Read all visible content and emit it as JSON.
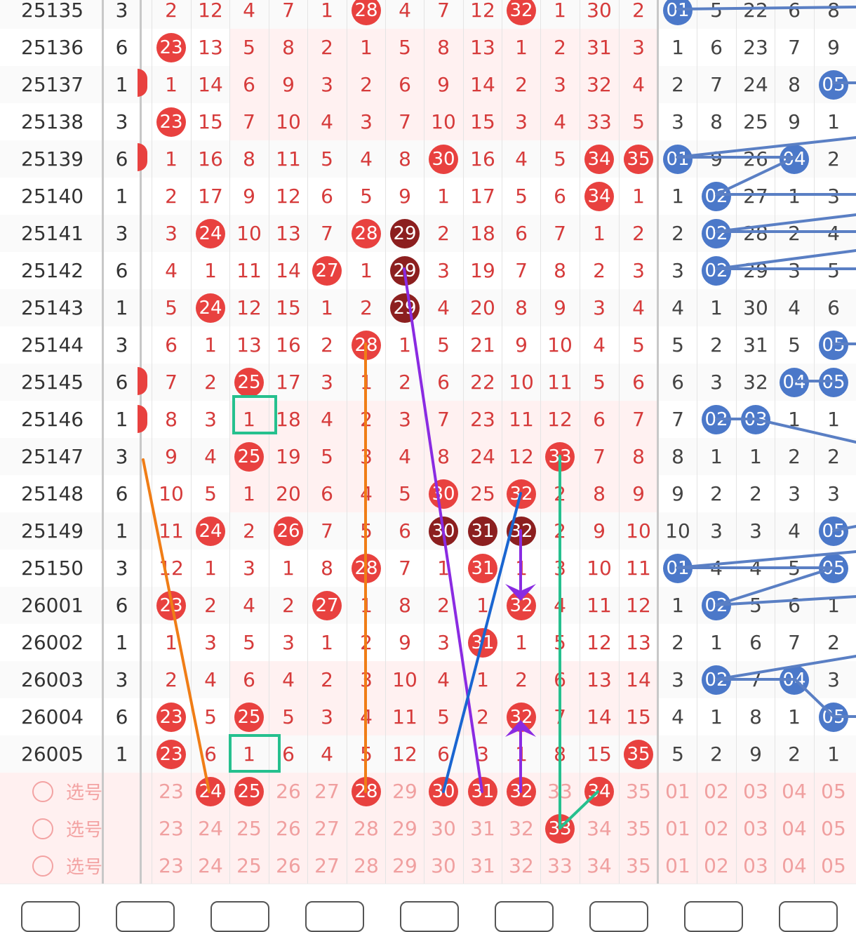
{
  "rows": [
    {
      "issue": "25135",
      "sum": "3",
      "a": [
        "2",
        "12"
      ],
      "b": [
        "4",
        "7",
        "1",
        "28",
        "4",
        "7",
        "12",
        "32",
        "1",
        "30",
        "2"
      ],
      "c": [
        "01",
        "5",
        "22",
        "6",
        "8"
      ]
    },
    {
      "issue": "25136",
      "sum": "6",
      "a": [
        "23",
        "13"
      ],
      "b": [
        "5",
        "8",
        "2",
        "1",
        "5",
        "8",
        "13",
        "1",
        "2",
        "31",
        "3"
      ],
      "c": [
        "1",
        "6",
        "23",
        "7",
        "9"
      ]
    },
    {
      "issue": "25137",
      "sum": "1",
      "a": [
        "1",
        "14"
      ],
      "b": [
        "6",
        "9",
        "3",
        "2",
        "6",
        "9",
        "14",
        "2",
        "3",
        "32",
        "4"
      ],
      "c": [
        "2",
        "7",
        "24",
        "8",
        "05"
      ]
    },
    {
      "issue": "25138",
      "sum": "3",
      "a": [
        "23",
        "15"
      ],
      "b": [
        "7",
        "10",
        "4",
        "3",
        "7",
        "10",
        "15",
        "3",
        "4",
        "33",
        "5"
      ],
      "c": [
        "3",
        "8",
        "25",
        "9",
        "1"
      ]
    },
    {
      "issue": "25139",
      "sum": "6",
      "a": [
        "1",
        "16"
      ],
      "b": [
        "8",
        "11",
        "5",
        "4",
        "8",
        "30",
        "16",
        "4",
        "5",
        "34",
        "35"
      ],
      "c": [
        "01",
        "9",
        "26",
        "04",
        "2"
      ]
    },
    {
      "issue": "25140",
      "sum": "1",
      "a": [
        "2",
        "17"
      ],
      "b": [
        "9",
        "12",
        "6",
        "5",
        "9",
        "1",
        "17",
        "5",
        "6",
        "34",
        "1"
      ],
      "c": [
        "1",
        "02",
        "27",
        "1",
        "3"
      ]
    },
    {
      "issue": "25141",
      "sum": "3",
      "a": [
        "3",
        "24"
      ],
      "b": [
        "10",
        "13",
        "7",
        "28",
        "29",
        "2",
        "18",
        "6",
        "7",
        "1",
        "2"
      ],
      "c": [
        "2",
        "02",
        "28",
        "2",
        "4"
      ]
    },
    {
      "issue": "25142",
      "sum": "6",
      "a": [
        "4",
        "1"
      ],
      "b": [
        "11",
        "14",
        "27",
        "1",
        "29",
        "3",
        "19",
        "7",
        "8",
        "2",
        "3"
      ],
      "c": [
        "3",
        "02",
        "29",
        "3",
        "5"
      ]
    },
    {
      "issue": "25143",
      "sum": "1",
      "a": [
        "5",
        "24"
      ],
      "b": [
        "12",
        "15",
        "1",
        "2",
        "29",
        "4",
        "20",
        "8",
        "9",
        "3",
        "4"
      ],
      "c": [
        "4",
        "1",
        "30",
        "4",
        "6"
      ]
    },
    {
      "issue": "25144",
      "sum": "3",
      "a": [
        "6",
        "1"
      ],
      "b": [
        "13",
        "16",
        "2",
        "28",
        "1",
        "5",
        "21",
        "9",
        "10",
        "4",
        "5"
      ],
      "c": [
        "5",
        "2",
        "31",
        "5",
        "05"
      ]
    },
    {
      "issue": "25145",
      "sum": "6",
      "a": [
        "7",
        "2"
      ],
      "b": [
        "25",
        "17",
        "3",
        "1",
        "2",
        "6",
        "22",
        "10",
        "11",
        "5",
        "6"
      ],
      "c": [
        "6",
        "3",
        "32",
        "04",
        "05"
      ]
    },
    {
      "issue": "25146",
      "sum": "1",
      "a": [
        "8",
        "3"
      ],
      "b": [
        "1",
        "18",
        "4",
        "2",
        "3",
        "7",
        "23",
        "11",
        "12",
        "6",
        "7"
      ],
      "c": [
        "7",
        "02",
        "03",
        "1",
        "1"
      ]
    },
    {
      "issue": "25147",
      "sum": "3",
      "a": [
        "9",
        "4"
      ],
      "b": [
        "25",
        "19",
        "5",
        "3",
        "4",
        "8",
        "24",
        "12",
        "33",
        "7",
        "8"
      ],
      "c": [
        "8",
        "1",
        "1",
        "2",
        "2"
      ]
    },
    {
      "issue": "25148",
      "sum": "6",
      "a": [
        "10",
        "5"
      ],
      "b": [
        "1",
        "20",
        "6",
        "4",
        "5",
        "30",
        "25",
        "32",
        "2",
        "8",
        "9"
      ],
      "c": [
        "9",
        "2",
        "2",
        "3",
        "3"
      ]
    },
    {
      "issue": "25149",
      "sum": "1",
      "a": [
        "11",
        "24"
      ],
      "b": [
        "2",
        "26",
        "7",
        "5",
        "6",
        "30",
        "31",
        "32",
        "2",
        "9",
        "10"
      ],
      "c": [
        "10",
        "3",
        "3",
        "4",
        "05"
      ]
    },
    {
      "issue": "25150",
      "sum": "3",
      "a": [
        "12",
        "1"
      ],
      "b": [
        "3",
        "1",
        "8",
        "28",
        "7",
        "1",
        "31",
        "1",
        "3",
        "10",
        "11"
      ],
      "c": [
        "01",
        "4",
        "4",
        "5",
        "05"
      ]
    },
    {
      "issue": "26001",
      "sum": "6",
      "a": [
        "23",
        "2"
      ],
      "b": [
        "4",
        "2",
        "27",
        "1",
        "8",
        "2",
        "1",
        "32",
        "4",
        "11",
        "12"
      ],
      "c": [
        "1",
        "02",
        "5",
        "6",
        "1"
      ]
    },
    {
      "issue": "26002",
      "sum": "1",
      "a": [
        "1",
        "3"
      ],
      "b": [
        "5",
        "3",
        "1",
        "2",
        "9",
        "3",
        "31",
        "1",
        "5",
        "12",
        "13"
      ],
      "c": [
        "2",
        "1",
        "6",
        "7",
        "2"
      ]
    },
    {
      "issue": "26003",
      "sum": "3",
      "a": [
        "2",
        "4"
      ],
      "b": [
        "6",
        "4",
        "2",
        "3",
        "10",
        "4",
        "1",
        "2",
        "6",
        "13",
        "14"
      ],
      "c": [
        "3",
        "02",
        "7",
        "04",
        "3"
      ]
    },
    {
      "issue": "26004",
      "sum": "6",
      "a": [
        "23",
        "5"
      ],
      "b": [
        "25",
        "5",
        "3",
        "4",
        "11",
        "5",
        "2",
        "32",
        "7",
        "14",
        "15"
      ],
      "c": [
        "4",
        "1",
        "8",
        "1",
        "05"
      ]
    },
    {
      "issue": "26005",
      "sum": "1",
      "a": [
        "23",
        "6"
      ],
      "b": [
        "1",
        "6",
        "4",
        "5",
        "12",
        "6",
        "3",
        "1",
        "8",
        "15",
        "35"
      ],
      "c": [
        "5",
        "2",
        "9",
        "2",
        "1"
      ]
    }
  ],
  "pick_label": "选号",
  "pick_numbers": [
    "23",
    "24",
    "25",
    "26",
    "27",
    "28",
    "29",
    "30",
    "31",
    "32",
    "33",
    "34",
    "35",
    "01",
    "02",
    "03",
    "04",
    "05"
  ],
  "pick_rows": [
    {
      "selected": [
        "24",
        "25",
        "28",
        "30",
        "31",
        "32",
        "34"
      ]
    },
    {
      "selected": [
        "33"
      ]
    },
    {
      "selected": []
    }
  ],
  "colors": {
    "red": "#e8413f",
    "dark": "#8c1f1f",
    "blue": "#4b78c9",
    "pink": "#fff0f0"
  },
  "toolbar_icons": [
    "menu-icon",
    "ruler-icon",
    "pencil-icon",
    "list-icon",
    "circle-icon",
    "board-icon",
    "line-icon",
    "eraser-icon",
    "close-icon"
  ]
}
